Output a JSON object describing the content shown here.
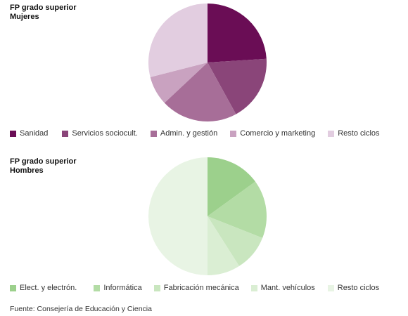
{
  "chart_data": [
    {
      "type": "pie",
      "title_line1": "FP grado superior",
      "title_line2": "Mujeres",
      "slices": [
        {
          "label": "Sanidad",
          "value": 24,
          "color": "#6a0d55"
        },
        {
          "label": "Servicios sociocult.",
          "value": 18,
          "color": "#8a4579"
        },
        {
          "label": "Admin. y gestión",
          "value": 21,
          "color": "#a76e98"
        },
        {
          "label": "Comercio y marketing",
          "value": 8,
          "color": "#c9a2c0"
        },
        {
          "label": "Resto ciclos",
          "value": 29,
          "color": "#e2cde0"
        }
      ]
    },
    {
      "type": "pie",
      "title_line1": "FP grado superior",
      "title_line2": "Hombres",
      "slices": [
        {
          "label": "Elect. y electrón.",
          "value": 15,
          "color": "#9cd08c"
        },
        {
          "label": "Informática",
          "value": 16,
          "color": "#b3dca5"
        },
        {
          "label": "Fabricación mecánica",
          "value": 10,
          "color": "#c9e6bf"
        },
        {
          "label": "Mant. vehículos",
          "value": 9,
          "color": "#daeed3"
        },
        {
          "label": "Resto ciclos",
          "value": 50,
          "color": "#e8f4e4"
        }
      ]
    }
  ],
  "source": "Fuente: Consejería de Educación y Ciencia"
}
